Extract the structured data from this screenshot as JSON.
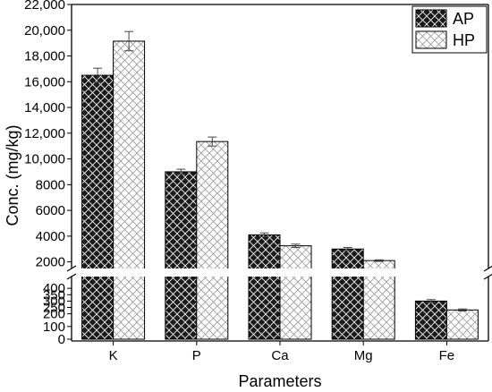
{
  "chart_data": {
    "type": "bar",
    "xlabel": "Parameters",
    "ylabel": "Conc. (mg/kg)",
    "categories": [
      "K",
      "P",
      "Ca",
      "Mg",
      "Fe"
    ],
    "series": [
      {
        "name": "AP",
        "values": [
          16500,
          9000,
          4100,
          3000,
          300
        ],
        "errors": [
          550,
          200,
          150,
          120,
          12
        ],
        "color": "#1a1a1a",
        "pattern_color": "#ffffff"
      },
      {
        "name": "HP",
        "values": [
          19150,
          11350,
          3250,
          2100,
          230
        ],
        "errors": [
          750,
          350,
          130,
          60,
          8
        ],
        "color": "#ffffff",
        "pattern_color": "#9a9a9a"
      }
    ],
    "y_broken_axis": {
      "upper_range": [
        1000,
        22000
      ],
      "upper_ticks": [
        "2000",
        "4000",
        "6000",
        "8000",
        "10,000",
        "12,000",
        "14,000",
        "16,000",
        "18,000",
        "20,000",
        "22,000"
      ],
      "lower_range": [
        0,
        500
      ],
      "lower_ticks": [
        "0",
        "100",
        "200",
        "250",
        "300",
        "350",
        "400"
      ]
    },
    "legend_position": "top-right",
    "grid": false
  }
}
